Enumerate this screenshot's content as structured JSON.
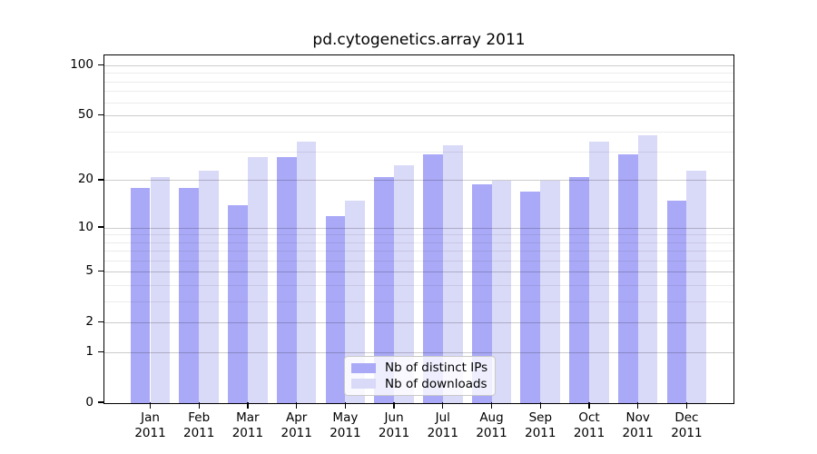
{
  "chart_data": {
    "type": "bar",
    "title": "pd.cytogenetics.array 2011",
    "categories": [
      "Jan 2011",
      "Feb 2011",
      "Mar 2011",
      "Apr 2011",
      "May 2011",
      "Jun 2011",
      "Jul 2011",
      "Aug 2011",
      "Sep 2011",
      "Oct 2011",
      "Nov 2011",
      "Dec 2011"
    ],
    "series": [
      {
        "name": "Nb of distinct IPs",
        "color": "#a9a9f7",
        "values": [
          18,
          18,
          14,
          28,
          12,
          21,
          29,
          19,
          17,
          21,
          29,
          15
        ]
      },
      {
        "name": "Nb of downloads",
        "color": "#d9d9f8",
        "values": [
          21,
          23,
          28,
          35,
          15,
          25,
          33,
          20,
          20,
          35,
          38,
          23
        ]
      }
    ],
    "xlabel": "",
    "ylabel": "",
    "y_axis": {
      "scale": "log1p",
      "ticks": [
        0,
        1,
        2,
        5,
        10,
        20,
        50,
        100
      ],
      "minor_ticks": [
        3,
        4,
        6,
        7,
        8,
        9,
        30,
        40,
        60,
        70,
        80,
        90
      ],
      "ylim": [
        0,
        114
      ]
    },
    "grid": true,
    "legend_position": "lower center"
  }
}
